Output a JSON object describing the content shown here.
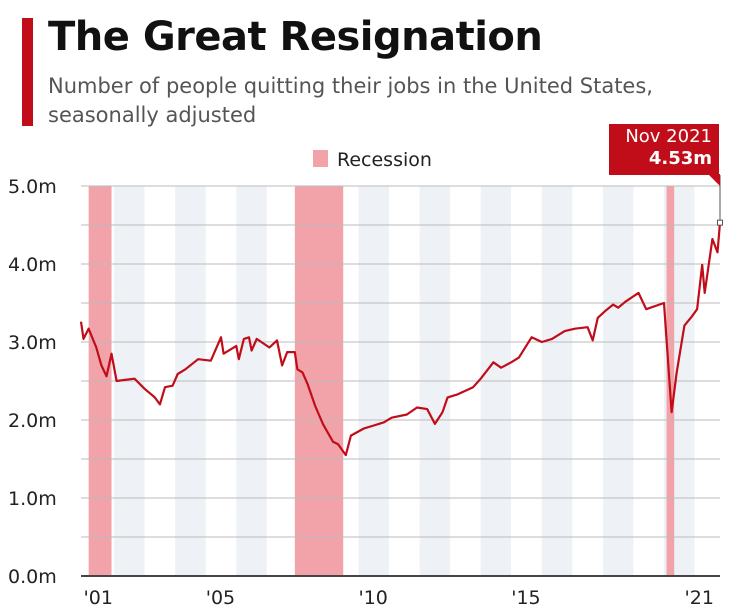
{
  "title": "The Great Resignation",
  "subtitle": "Number of people quitting their jobs in the United States, seasonally adjusted",
  "colors": {
    "accent": "#c00d19",
    "line": "#c00d19",
    "recession": "#f2a3a9",
    "stripe": "#eef1f5",
    "grid": "#bbbbbb"
  },
  "chart_data": {
    "type": "line",
    "title": "The Great Resignation",
    "subtitle": "Number of people quitting their jobs in the United States, seasonally adjusted",
    "xlabel": "",
    "ylabel": "",
    "xlim": [
      "2000-12",
      "2021-11"
    ],
    "ylim": [
      0,
      5.0
    ],
    "y_ticks": [
      "0.0m",
      "1.0m",
      "2.0m",
      "3.0m",
      "4.0m",
      "5.0m"
    ],
    "x_ticks": [
      {
        "label": "'01",
        "year": 2001
      },
      {
        "label": "'05",
        "year": 2005
      },
      {
        "label": "'10",
        "year": 2010
      },
      {
        "label": "'15",
        "year": 2015
      },
      {
        "label": "'21",
        "year": 2021
      }
    ],
    "grid": true,
    "legend": {
      "position": "top-center",
      "entries": [
        "Recession"
      ]
    },
    "recessions": [
      [
        "2001-03",
        "2001-11"
      ],
      [
        "2007-12",
        "2009-06"
      ],
      [
        "2020-02",
        "2020-04"
      ]
    ],
    "series": [
      {
        "unit": "millions",
        "x": [
          "2000-12",
          "2001-01",
          "2001-03",
          "2001-06",
          "2001-08",
          "2001-10",
          "2001-12",
          "2002-02",
          "2002-09",
          "2003-01",
          "2003-05",
          "2003-07",
          "2003-09",
          "2003-12",
          "2004-02",
          "2004-05",
          "2004-10",
          "2005-03",
          "2005-07",
          "2005-08",
          "2006-01",
          "2006-02",
          "2006-04",
          "2006-06",
          "2006-07",
          "2006-09",
          "2007-02",
          "2007-05",
          "2007-07",
          "2007-09",
          "2007-12",
          "2008-01",
          "2008-03",
          "2008-05",
          "2008-08",
          "2008-11",
          "2009-03",
          "2009-05",
          "2009-08",
          "2009-10",
          "2010-03",
          "2010-07",
          "2010-11",
          "2011-02",
          "2011-08",
          "2011-12",
          "2012-04",
          "2012-07",
          "2012-10",
          "2012-12",
          "2013-04",
          "2013-10",
          "2014-01",
          "2014-06",
          "2014-09",
          "2015-01",
          "2015-04",
          "2015-09",
          "2016-01",
          "2016-05",
          "2016-10",
          "2017-02",
          "2017-07",
          "2017-09",
          "2017-11",
          "2018-02",
          "2018-05",
          "2018-07",
          "2018-10",
          "2019-03",
          "2019-06",
          "2020-01",
          "2020-04",
          "2020-06",
          "2020-09",
          "2020-12",
          "2021-02",
          "2021-04",
          "2021-05",
          "2021-08",
          "2021-10",
          "2021-11"
        ],
        "y": [
          3.26,
          3.04,
          3.17,
          2.93,
          2.7,
          2.56,
          2.85,
          2.5,
          2.53,
          2.4,
          2.29,
          2.2,
          2.42,
          2.44,
          2.59,
          2.65,
          2.78,
          2.76,
          3.06,
          2.85,
          2.95,
          2.78,
          3.04,
          3.06,
          2.89,
          3.04,
          2.93,
          3.02,
          2.7,
          2.87,
          2.87,
          2.65,
          2.61,
          2.46,
          2.18,
          1.95,
          1.72,
          1.69,
          1.55,
          1.8,
          1.89,
          1.93,
          1.97,
          2.03,
          2.07,
          2.16,
          2.14,
          1.95,
          2.1,
          2.29,
          2.33,
          2.42,
          2.53,
          2.74,
          2.67,
          2.74,
          2.8,
          3.06,
          3.0,
          3.04,
          3.14,
          3.17,
          3.19,
          3.02,
          3.31,
          3.4,
          3.48,
          3.44,
          3.52,
          3.63,
          3.42,
          3.5,
          2.1,
          2.61,
          3.21,
          3.33,
          3.42,
          3.99,
          3.63,
          4.32,
          4.15,
          4.53
        ]
      }
    ],
    "annotations": [
      {
        "date_label": "Nov 2021",
        "value_label": "4.53m"
      }
    ]
  }
}
